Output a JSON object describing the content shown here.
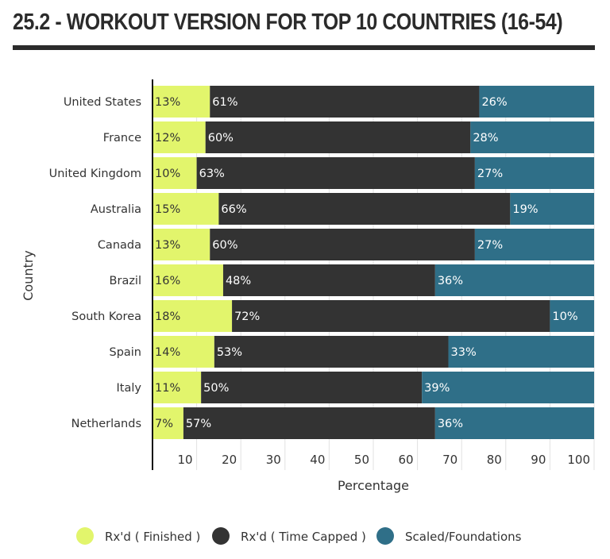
{
  "chart_data": {
    "type": "bar",
    "orientation": "horizontal",
    "stacked": true,
    "title": "25.2 - WORKOUT VERSION FOR TOP 10 COUNTRIES (16-54)",
    "xlabel": "Percentage",
    "ylabel": "Country",
    "xlim": [
      0,
      100
    ],
    "xticks": [
      10,
      20,
      30,
      40,
      50,
      60,
      70,
      80,
      90,
      100
    ],
    "grid": true,
    "legend_placement": "bottom",
    "categories": [
      "United States",
      "France",
      "United Kingdom",
      "Australia",
      "Canada",
      "Brazil",
      "South Korea",
      "Spain",
      "Italy",
      "Netherlands"
    ],
    "series": [
      {
        "name": "Rx'd ( Finished )",
        "color": "#e2f56c",
        "values": [
          13,
          12,
          10,
          15,
          13,
          16,
          18,
          14,
          11,
          7
        ]
      },
      {
        "name": "Rx'd ( Time Capped )",
        "color": "#333333",
        "values": [
          61,
          60,
          63,
          66,
          60,
          48,
          72,
          53,
          50,
          57
        ]
      },
      {
        "name": "Scaled/Foundations",
        "color": "#2f6f88",
        "values": [
          26,
          28,
          27,
          19,
          27,
          36,
          10,
          33,
          39,
          36
        ]
      }
    ]
  }
}
